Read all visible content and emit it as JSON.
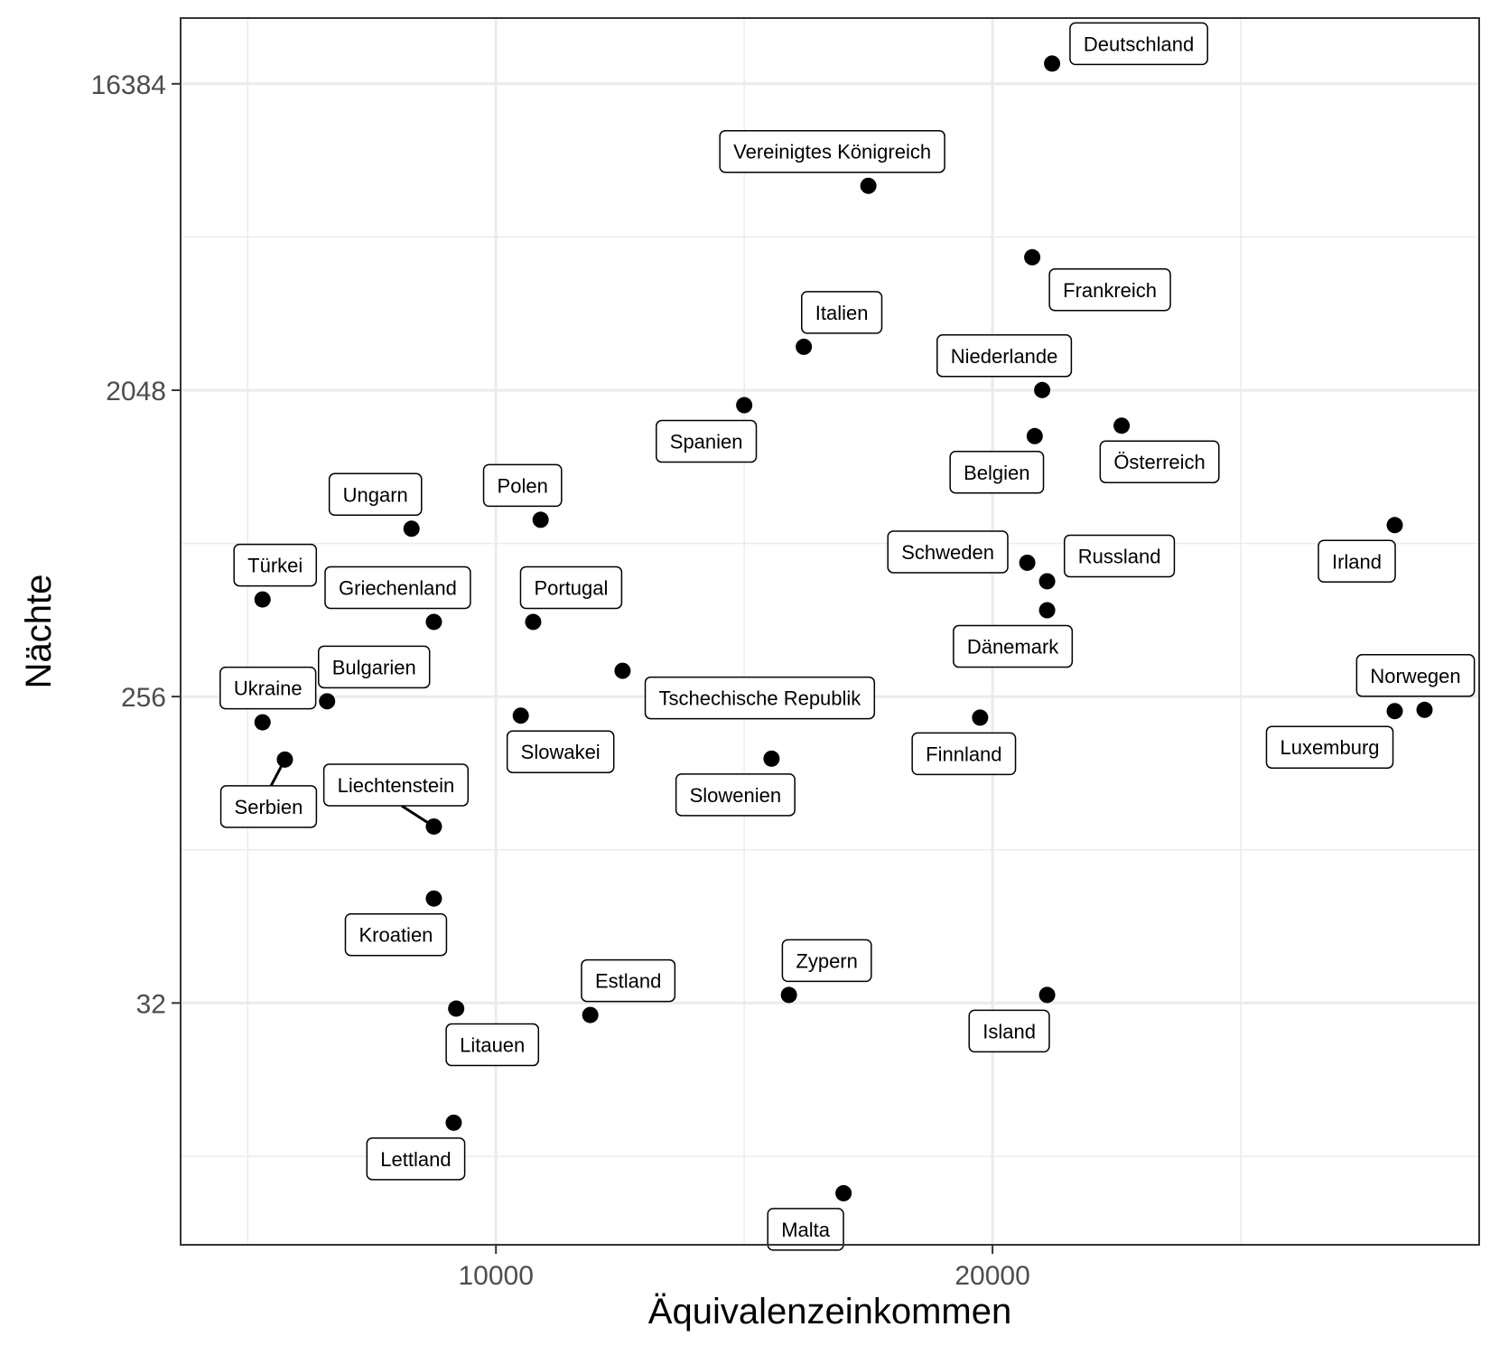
{
  "chart_data": {
    "type": "scatter",
    "xlabel": "Äquivalenzeinkommen",
    "ylabel": "Nächte",
    "x_scale": "linear",
    "y_scale": "log2",
    "xlim": [
      3650,
      29800
    ],
    "ylim": [
      6.2,
      25600
    ],
    "x_ticks": [
      10000,
      20000
    ],
    "x_tick_labels": [
      "10000",
      "20000"
    ],
    "x_minor_ticks": [
      5000,
      15000,
      25000
    ],
    "y_ticks": [
      32,
      256,
      2048,
      16384
    ],
    "y_tick_labels": [
      "32",
      "256",
      "2048",
      "16384"
    ],
    "y_minor_ticks": [
      11.3,
      90.5,
      724,
      5793
    ],
    "grid": true,
    "legend": "none",
    "colors": {
      "point": "#000000",
      "grid": "#ebebeb",
      "panel_border": "#333333"
    },
    "points": [
      {
        "name": "Deutschland",
        "x": 21200,
        "y": 18800
      },
      {
        "name": "Vereinigtes Königreich",
        "x": 17500,
        "y": 8200
      },
      {
        "name": "Frankreich",
        "x": 20800,
        "y": 5050
      },
      {
        "name": "Italien",
        "x": 16200,
        "y": 2750
      },
      {
        "name": "Spanien",
        "x": 15000,
        "y": 1850
      },
      {
        "name": "Niederlande",
        "x": 21000,
        "y": 2050
      },
      {
        "name": "Belgien",
        "x": 20850,
        "y": 1500
      },
      {
        "name": "Österreich",
        "x": 22600,
        "y": 1610
      },
      {
        "name": "Polen",
        "x": 10900,
        "y": 850
      },
      {
        "name": "Ungarn",
        "x": 8300,
        "y": 800
      },
      {
        "name": "Irland",
        "x": 28100,
        "y": 820
      },
      {
        "name": "Türkei",
        "x": 5300,
        "y": 495
      },
      {
        "name": "Schweden",
        "x": 20700,
        "y": 635
      },
      {
        "name": "Russland",
        "x": 21100,
        "y": 560
      },
      {
        "name": "Dänemark",
        "x": 21100,
        "y": 460
      },
      {
        "name": "Griechenland",
        "x": 8750,
        "y": 425
      },
      {
        "name": "Portugal",
        "x": 10750,
        "y": 425
      },
      {
        "name": "Tschechische Republik",
        "x": 12550,
        "y": 305
      },
      {
        "name": "Bulgarien",
        "x": 6600,
        "y": 248
      },
      {
        "name": "Slowakei",
        "x": 10500,
        "y": 225
      },
      {
        "name": "Finnland",
        "x": 19750,
        "y": 222
      },
      {
        "name": "Norwegen",
        "x": 28700,
        "y": 234
      },
      {
        "name": "Luxemburg",
        "x": 28100,
        "y": 232
      },
      {
        "name": "Ukraine",
        "x": 5300,
        "y": 215
      },
      {
        "name": "Serbien",
        "x": 5750,
        "y": 167
      },
      {
        "name": "Slowenien",
        "x": 15550,
        "y": 168
      },
      {
        "name": "Liechtenstein",
        "x": 8750,
        "y": 106
      },
      {
        "name": "Kroatien",
        "x": 8750,
        "y": 65
      },
      {
        "name": "Zypern",
        "x": 15900,
        "y": 33.8
      },
      {
        "name": "Island",
        "x": 21100,
        "y": 33.8
      },
      {
        "name": "Estland",
        "x": 11900,
        "y": 29.5
      },
      {
        "name": "Litauen",
        "x": 9200,
        "y": 30.8
      },
      {
        "name": "Lettland",
        "x": 9150,
        "y": 14.2
      },
      {
        "name": "Malta",
        "x": 17000,
        "y": 8.8
      }
    ]
  }
}
